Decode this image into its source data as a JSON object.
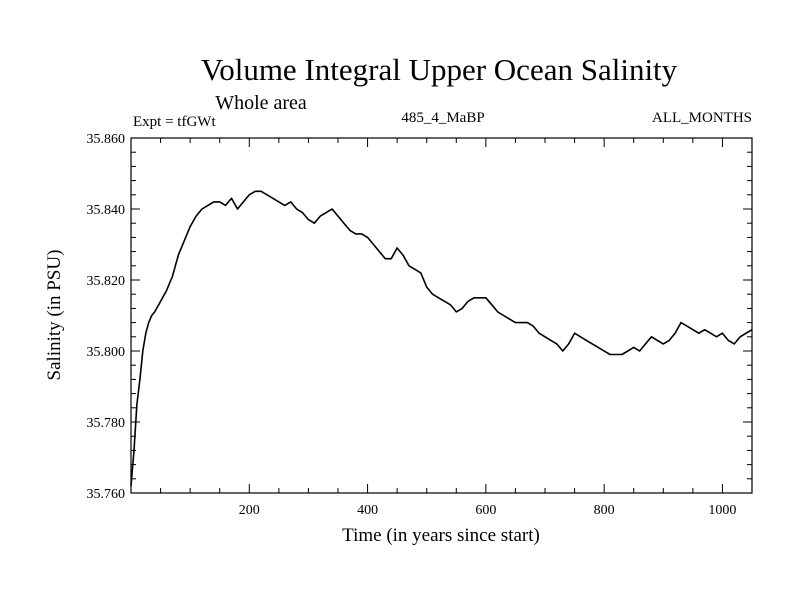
{
  "chart_data": {
    "type": "line",
    "title": "Volume Integral Upper Ocean Salinity",
    "subtitle": "Whole area",
    "left_label": "Expt = tfGWt",
    "center_label": "485_4_MaBP",
    "right_label": "ALL_MONTHS",
    "xlabel": "Time (in years since start)",
    "ylabel": "Salinity (in PSU)",
    "xlim": [
      0,
      1050
    ],
    "ylim": [
      35.76,
      35.86
    ],
    "x_ticks": [
      200,
      400,
      600,
      800,
      1000
    ],
    "x_tick_labels": [
      "200",
      "400",
      "600",
      "800",
      "1000"
    ],
    "y_ticks": [
      35.76,
      35.78,
      35.8,
      35.82,
      35.84,
      35.86
    ],
    "y_tick_labels": [
      "35.760",
      "35.780",
      "35.800",
      "35.820",
      "35.840",
      "35.860"
    ],
    "series": [
      {
        "name": "salinity",
        "x": [
          0,
          5,
          10,
          15,
          20,
          25,
          30,
          35,
          40,
          50,
          60,
          70,
          80,
          90,
          100,
          110,
          120,
          130,
          140,
          150,
          160,
          170,
          180,
          190,
          200,
          210,
          220,
          230,
          240,
          250,
          260,
          270,
          280,
          290,
          300,
          310,
          320,
          330,
          340,
          350,
          360,
          370,
          380,
          390,
          400,
          410,
          420,
          430,
          440,
          450,
          460,
          470,
          480,
          490,
          500,
          510,
          520,
          530,
          540,
          550,
          560,
          570,
          580,
          590,
          600,
          610,
          620,
          630,
          640,
          650,
          660,
          670,
          680,
          690,
          700,
          710,
          720,
          730,
          740,
          750,
          760,
          770,
          780,
          790,
          800,
          810,
          820,
          830,
          840,
          850,
          860,
          870,
          880,
          890,
          900,
          910,
          920,
          930,
          940,
          950,
          960,
          970,
          980,
          990,
          1000,
          1010,
          1020,
          1030,
          1040,
          1050
        ],
        "y": [
          35.762,
          35.772,
          35.785,
          35.792,
          35.8,
          35.805,
          35.808,
          35.81,
          35.811,
          35.814,
          35.817,
          35.821,
          35.827,
          35.831,
          35.835,
          35.838,
          35.84,
          35.841,
          35.842,
          35.842,
          35.841,
          35.843,
          35.84,
          35.842,
          35.844,
          35.845,
          35.845,
          35.844,
          35.843,
          35.842,
          35.841,
          35.842,
          35.84,
          35.839,
          35.837,
          35.836,
          35.838,
          35.839,
          35.84,
          35.838,
          35.836,
          35.834,
          35.833,
          35.833,
          35.832,
          35.83,
          35.828,
          35.826,
          35.826,
          35.829,
          35.827,
          35.824,
          35.823,
          35.822,
          35.818,
          35.816,
          35.815,
          35.814,
          35.813,
          35.811,
          35.812,
          35.814,
          35.815,
          35.815,
          35.815,
          35.813,
          35.811,
          35.81,
          35.809,
          35.808,
          35.808,
          35.808,
          35.807,
          35.805,
          35.804,
          35.803,
          35.802,
          35.8,
          35.802,
          35.805,
          35.804,
          35.803,
          35.802,
          35.801,
          35.8,
          35.799,
          35.799,
          35.799,
          35.8,
          35.801,
          35.8,
          35.802,
          35.804,
          35.803,
          35.802,
          35.803,
          35.805,
          35.808,
          35.807,
          35.806,
          35.805,
          35.806,
          35.805,
          35.804,
          35.805,
          35.803,
          35.802,
          35.804,
          35.805,
          35.806
        ]
      }
    ]
  }
}
